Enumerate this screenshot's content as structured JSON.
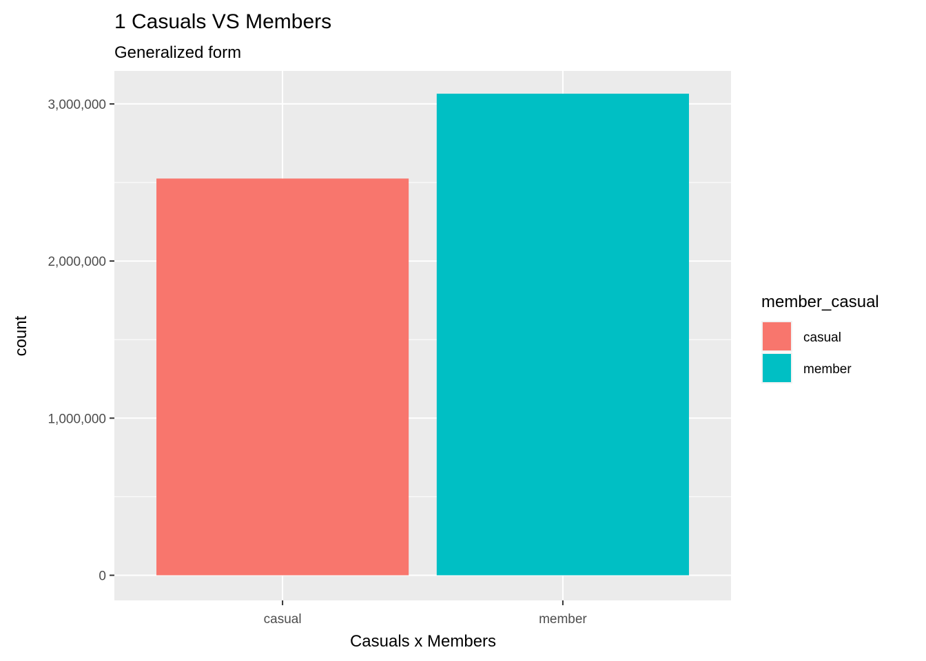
{
  "chart_data": {
    "type": "bar",
    "title": "1 Casuals VS Members",
    "subtitle": "Generalized form",
    "xlabel": "Casuals x Members",
    "ylabel": "count",
    "categories": [
      "casual",
      "member"
    ],
    "values": [
      2525000,
      3065000
    ],
    "colors": [
      "#F8766D",
      "#00BFC4"
    ],
    "ylim": [
      -160000,
      3210000
    ],
    "yticks": [
      0,
      1000000,
      2000000,
      3000000
    ],
    "ytick_labels": [
      "0",
      "1,000,000",
      "2,000,000",
      "3,000,000"
    ],
    "grid": true,
    "panel_background": "#EBEBEB",
    "legend": {
      "title": "member_casual",
      "position": "right",
      "entries": [
        {
          "label": "casual",
          "color": "#F8766D"
        },
        {
          "label": "member",
          "color": "#00BFC4"
        }
      ]
    }
  }
}
